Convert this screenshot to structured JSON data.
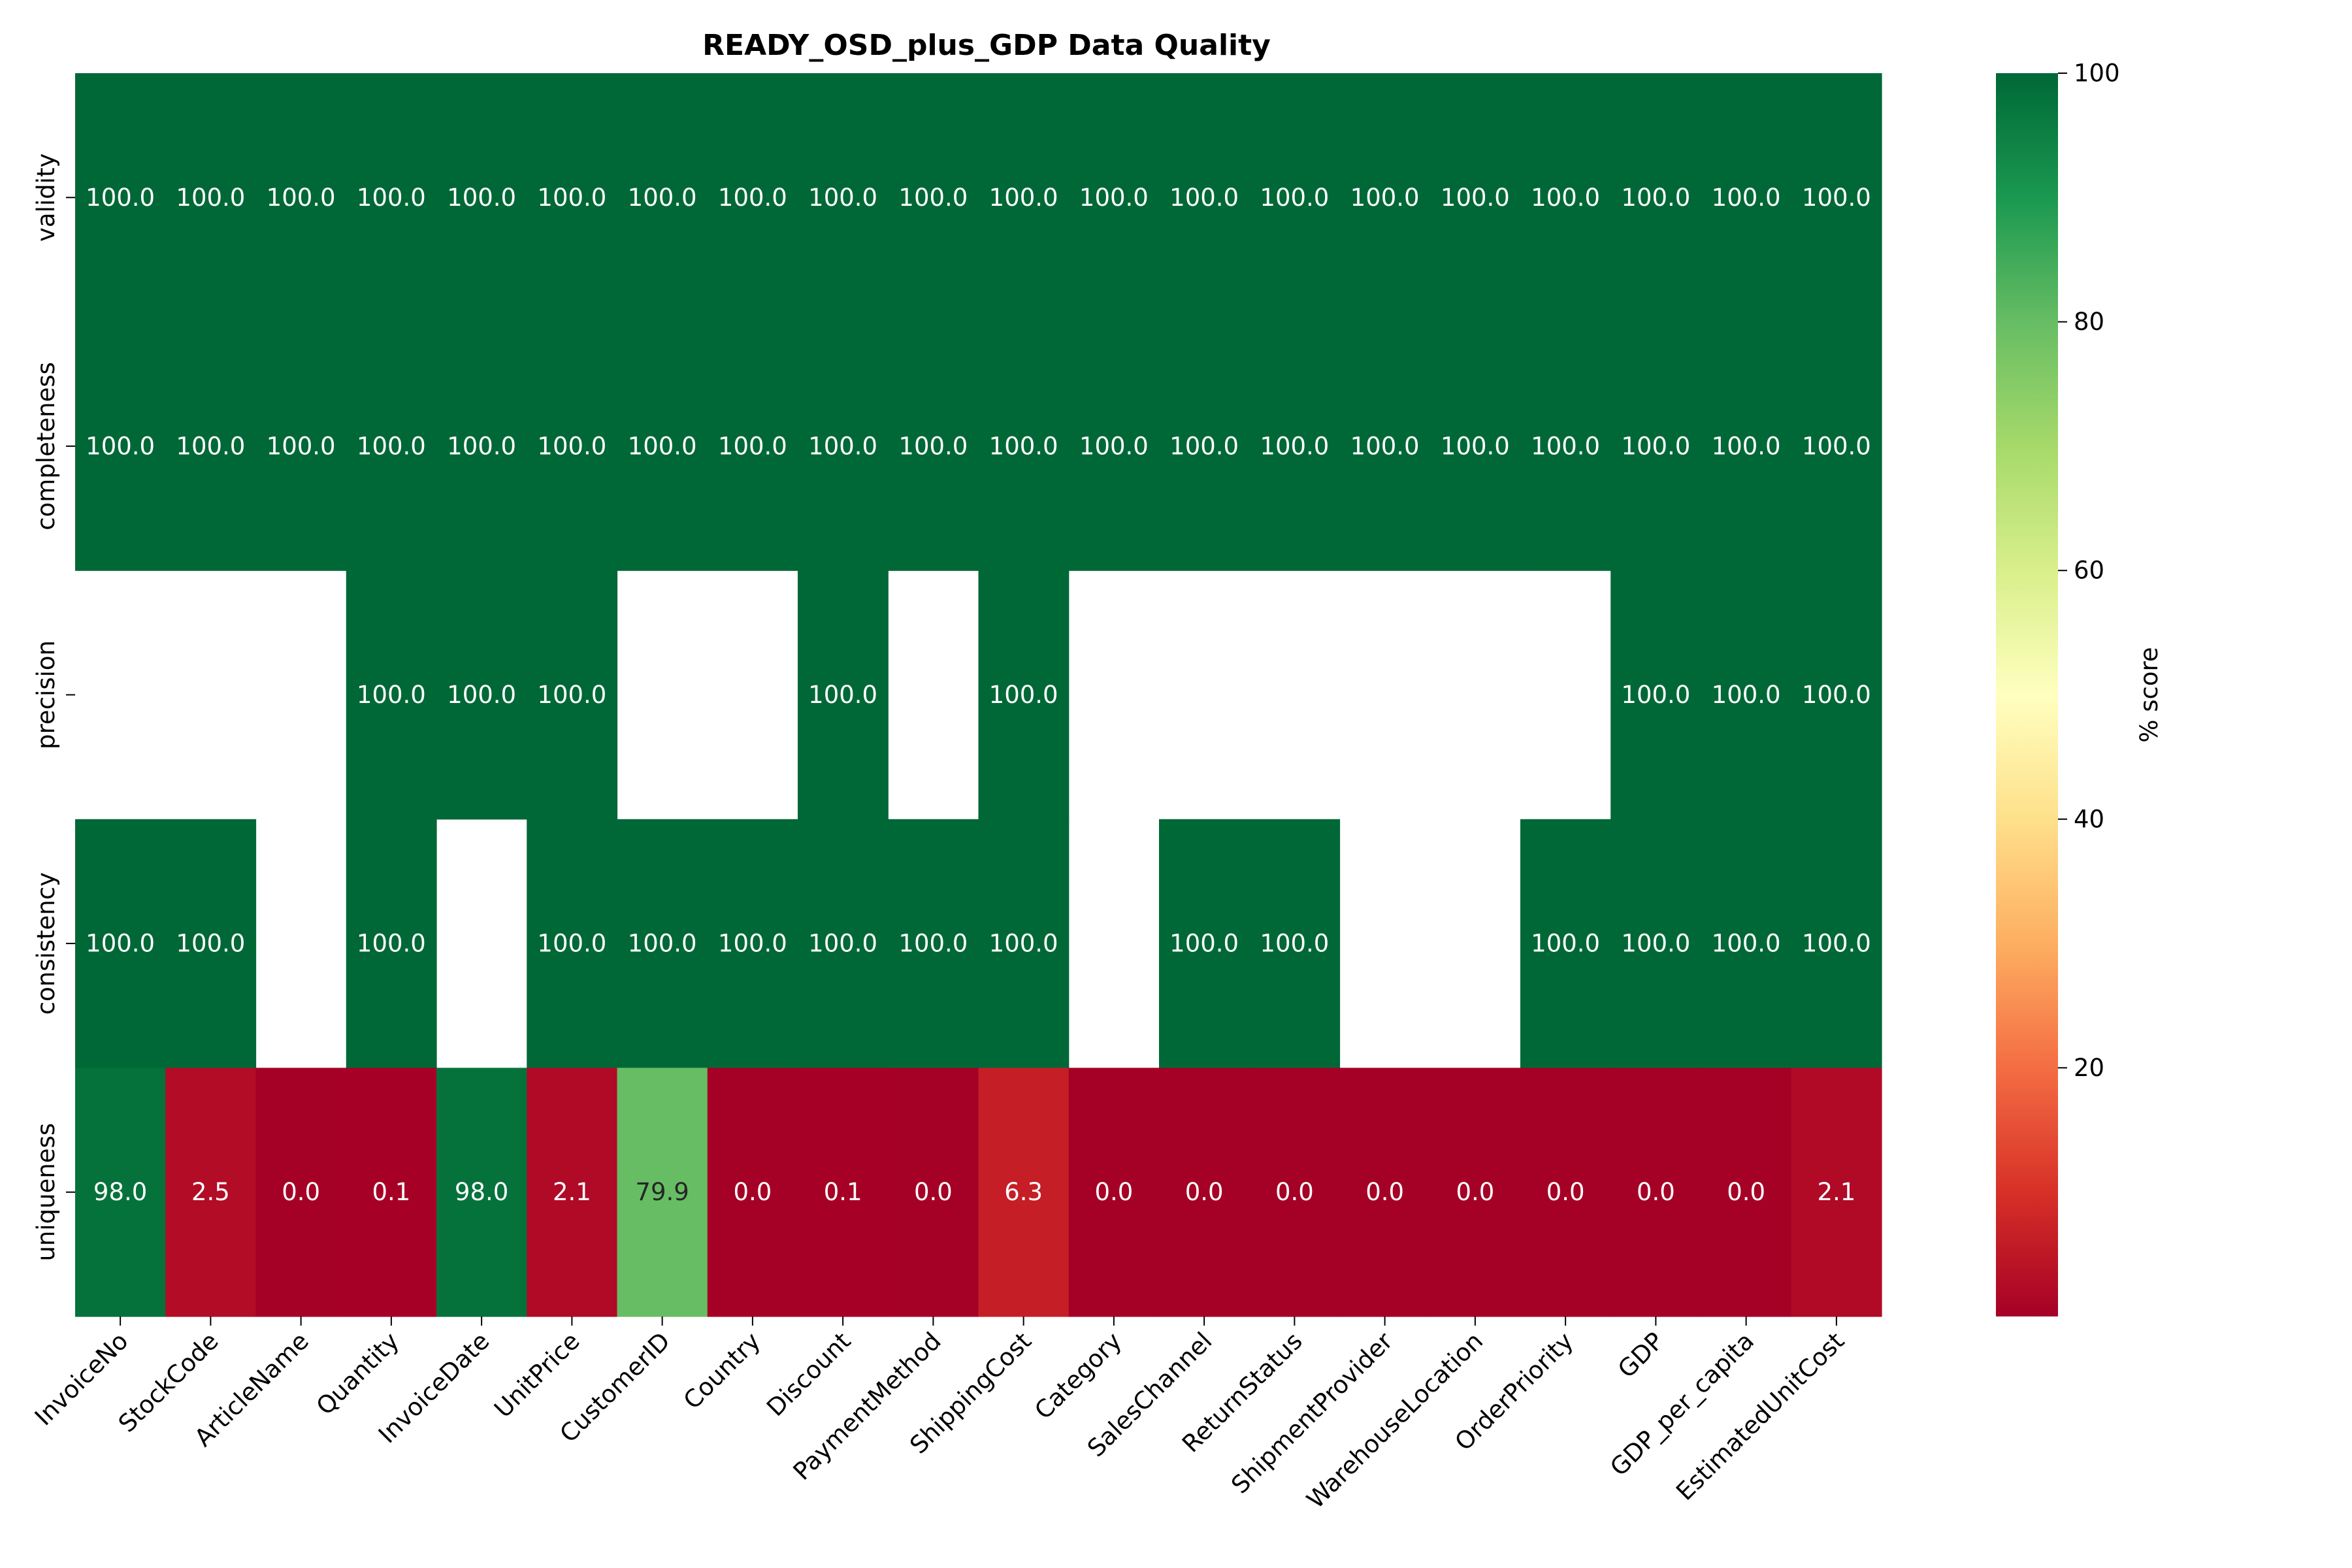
{
  "chart_data": {
    "type": "heatmap",
    "title": "READY_OSD_plus_GDP Data Quality",
    "xlabel": "",
    "ylabel": "",
    "columns": [
      "InvoiceNo",
      "StockCode",
      "ArticleName",
      "Quantity",
      "InvoiceDate",
      "UnitPrice",
      "CustomerID",
      "Country",
      "Discount",
      "PaymentMethod",
      "ShippingCost",
      "Category",
      "SalesChannel",
      "ReturnStatus",
      "ShipmentProvider",
      "WarehouseLocation",
      "OrderPriority",
      "GDP",
      "GDP_per_capita",
      "EstimatedUnitCost"
    ],
    "rows": [
      "validity",
      "completeness",
      "precision",
      "consistency",
      "uniqueness"
    ],
    "values": [
      [
        100,
        100,
        100,
        100,
        100,
        100,
        100,
        100,
        100,
        100,
        100,
        100,
        100,
        100,
        100,
        100,
        100,
        100,
        100,
        100
      ],
      [
        100,
        100,
        100,
        100,
        100,
        100,
        100,
        100,
        100,
        100,
        100,
        100,
        100,
        100,
        100,
        100,
        100,
        100,
        100,
        100
      ],
      [
        null,
        null,
        null,
        100,
        100,
        100,
        null,
        null,
        100,
        null,
        100,
        null,
        null,
        null,
        null,
        null,
        null,
        100,
        100,
        100
      ],
      [
        100,
        100,
        null,
        100,
        null,
        100,
        100,
        100,
        100,
        100,
        100,
        null,
        100,
        100,
        null,
        null,
        100,
        100,
        100,
        100
      ],
      [
        98.0,
        2.5,
        0.0,
        0.1,
        98.0,
        2.1,
        79.9,
        0.0,
        0.1,
        0.0,
        6.3,
        0.0,
        0.0,
        0.0,
        0.0,
        0.0,
        0.0,
        0.0,
        0.0,
        2.1
      ]
    ],
    "value_format": "0.0",
    "colormap": "RdYlGn",
    "colormap_stops": [
      "#a50026",
      "#d73027",
      "#f46d43",
      "#fdae61",
      "#fee08b",
      "#ffffbf",
      "#d9ef8b",
      "#a6d96a",
      "#66bd63",
      "#1a9850",
      "#006837"
    ],
    "color_range": [
      0,
      100
    ],
    "missing_color": "#ffffff",
    "colorbar": {
      "label": "% score",
      "ticks": [
        20,
        40,
        60,
        80,
        100
      ]
    }
  }
}
